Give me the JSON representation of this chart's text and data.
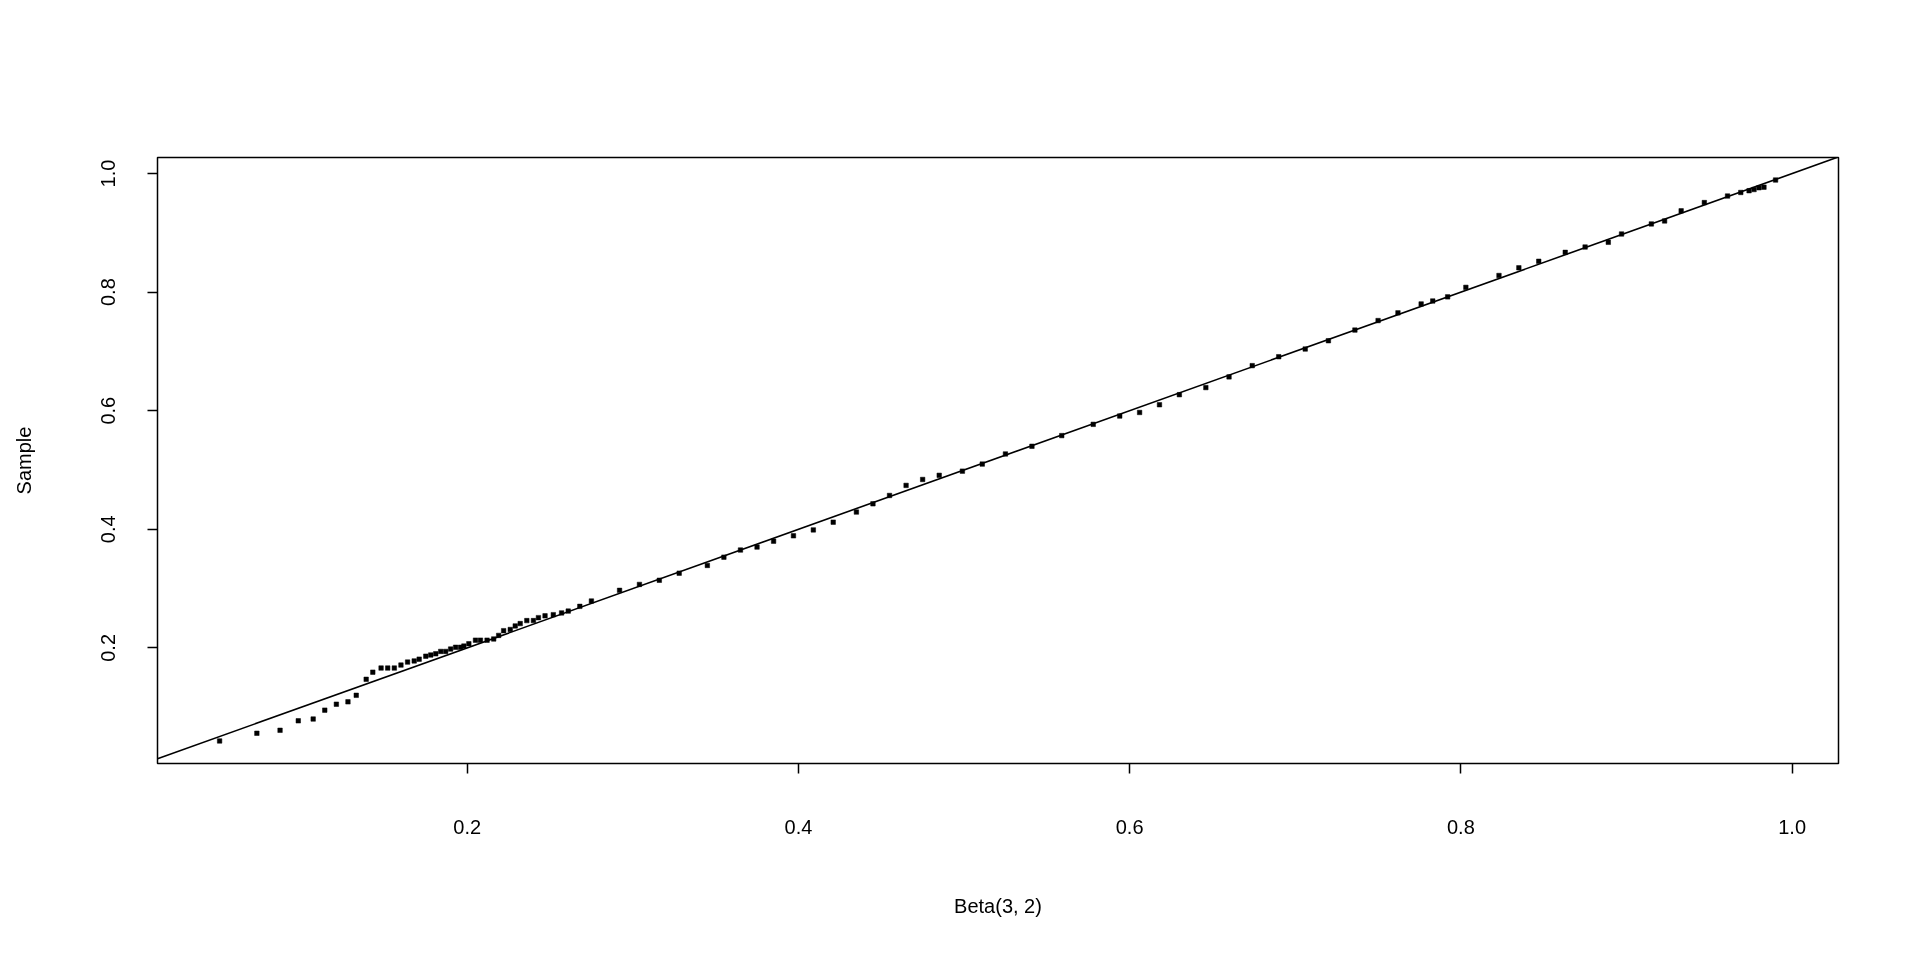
{
  "chart_data": {
    "type": "scatter",
    "xlabel": "Beta(3, 2)",
    "ylabel": "Sample",
    "xlim": [
      0.013,
      1.028
    ],
    "ylim": [
      0.005,
      1.027
    ],
    "xticks": [
      0.2,
      0.4,
      0.6,
      0.8,
      {
        "value": 1,
        "label": "1.0"
      }
    ],
    "yticks": [
      0.2,
      0.4,
      0.6,
      0.8,
      {
        "value": 1,
        "label": "1.0"
      }
    ],
    "grid": false,
    "marker": "square",
    "series": [
      {
        "color": "#000000",
        "x": [
          0.0505,
          0.073,
          0.087,
          0.098,
          0.107,
          0.114,
          0.121,
          0.128,
          0.133,
          0.139,
          0.143,
          0.148,
          0.152,
          0.156,
          0.16,
          0.164,
          0.168,
          0.171,
          0.175,
          0.178,
          0.181,
          0.184,
          0.187,
          0.19,
          0.193,
          0.196,
          0.198,
          0.201,
          0.205,
          0.208,
          0.212,
          0.216,
          0.219,
          0.222,
          0.226,
          0.229,
          0.232,
          0.236,
          0.24,
          0.243,
          0.247,
          0.252,
          0.257,
          0.261,
          0.268,
          0.275,
          0.292,
          0.304,
          0.316,
          0.328,
          0.345,
          0.355,
          0.365,
          0.375,
          0.385,
          0.397,
          0.409,
          0.421,
          0.435,
          0.445,
          0.455,
          0.465,
          0.475,
          0.485,
          0.499,
          0.511,
          0.525,
          0.541,
          0.559,
          0.578,
          0.594,
          0.606,
          0.618,
          0.63,
          0.646,
          0.66,
          0.674,
          0.69,
          0.706,
          0.72,
          0.736,
          0.75,
          0.762,
          0.776,
          0.783,
          0.792,
          0.803,
          0.823,
          0.835,
          0.847,
          0.863,
          0.875,
          0.889,
          0.897,
          0.915,
          0.923,
          0.933,
          0.947,
          0.961,
          0.969,
          0.974,
          0.977,
          0.98,
          0.983,
          0.99
        ],
        "values": [
          0.043,
          0.056,
          0.061,
          0.077,
          0.08,
          0.095,
          0.105,
          0.109,
          0.12,
          0.147,
          0.159,
          0.166,
          0.166,
          0.166,
          0.171,
          0.176,
          0.178,
          0.181,
          0.186,
          0.188,
          0.19,
          0.194,
          0.194,
          0.198,
          0.201,
          0.201,
          0.203,
          0.207,
          0.213,
          0.213,
          0.213,
          0.215,
          0.221,
          0.229,
          0.231,
          0.237,
          0.241,
          0.246,
          0.246,
          0.251,
          0.254,
          0.256,
          0.259,
          0.262,
          0.27,
          0.279,
          0.297,
          0.307,
          0.314,
          0.326,
          0.339,
          0.353,
          0.365,
          0.37,
          0.38,
          0.389,
          0.399,
          0.412,
          0.429,
          0.443,
          0.457,
          0.474,
          0.484,
          0.491,
          0.498,
          0.51,
          0.527,
          0.54,
          0.558,
          0.577,
          0.591,
          0.597,
          0.61,
          0.627,
          0.639,
          0.657,
          0.676,
          0.691,
          0.704,
          0.718,
          0.736,
          0.752,
          0.765,
          0.78,
          0.785,
          0.792,
          0.808,
          0.828,
          0.841,
          0.852,
          0.867,
          0.876,
          0.884,
          0.898,
          0.915,
          0.92,
          0.937,
          0.951,
          0.962,
          0.968,
          0.971,
          0.973,
          0.976,
          0.977,
          0.989
        ]
      },
      {
        "type": "line",
        "color": "#000000",
        "line_style": "solid",
        "marker": "none",
        "x": [
          0.013,
          1.027
        ],
        "values": [
          0.013,
          1.027
        ]
      }
    ]
  }
}
